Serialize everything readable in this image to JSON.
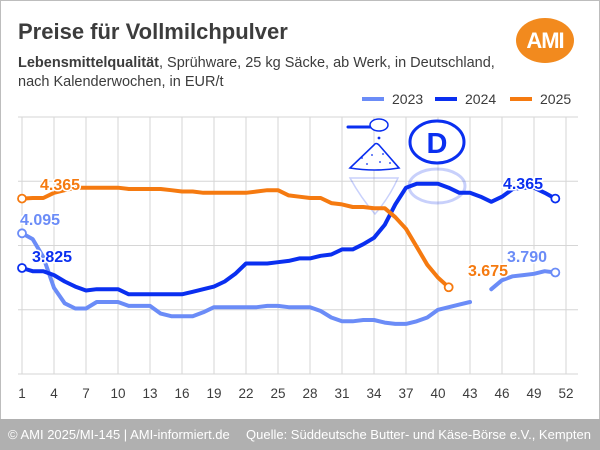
{
  "header": {
    "title": "Preise für Vollmilchpulver",
    "subtitle_bold": "Lebensmittelqualität",
    "subtitle_rest": ", Sprühware, 25 kg Säcke, ab Werk, in Deutschland,",
    "subtitle_line2": "nach Kalenderwochen, in EUR/t",
    "logo_text": "AMI",
    "logo_color": "#f28a1e"
  },
  "icon": {
    "name": "milk-powder-scoop-germany-icon",
    "badge_text": "D"
  },
  "footer": {
    "left": "© AMI 2025/MI-145 | AMI-informiert.de",
    "right": "Quelle: Süddeutsche Butter- und Käse-Börse e.V., Kempten"
  },
  "chart_data": {
    "type": "line",
    "title": "Preise für Vollmilchpulver",
    "xlabel": "Kalenderwoche",
    "ylabel": "EUR/t",
    "x_ticks": [
      1,
      4,
      7,
      10,
      13,
      16,
      19,
      22,
      25,
      28,
      31,
      34,
      37,
      40,
      43,
      46,
      49,
      52
    ],
    "x_range": [
      1,
      52
    ],
    "y_range": [
      3.0,
      5.0
    ],
    "y_gridlines": [
      3.0,
      3.5,
      4.0,
      4.5,
      5.0
    ],
    "y_tick_labels_shown": false,
    "grid": true,
    "legend_position": "top-right",
    "series": [
      {
        "name": "2023",
        "color": "#6b8cf7",
        "start_label": "4.095",
        "end_label": "3.790",
        "values": [
          4.095,
          4.05,
          3.91,
          3.67,
          3.55,
          3.51,
          3.51,
          3.56,
          3.56,
          3.56,
          3.53,
          3.53,
          3.53,
          3.47,
          3.45,
          3.45,
          3.45,
          3.48,
          3.52,
          3.52,
          3.52,
          3.52,
          3.52,
          3.53,
          3.53,
          3.52,
          3.52,
          3.52,
          3.49,
          3.44,
          3.41,
          3.41,
          3.42,
          3.42,
          3.4,
          3.39,
          3.39,
          3.41,
          3.44,
          3.5,
          3.52,
          3.54,
          3.56,
          null,
          3.66,
          3.73,
          3.76,
          3.77,
          3.78,
          3.8,
          3.79
        ]
      },
      {
        "name": "2024",
        "color": "#0a2ff0",
        "start_label": "3.825",
        "end_label": "4.365",
        "values": [
          3.825,
          3.8,
          3.8,
          3.77,
          3.72,
          3.68,
          3.65,
          3.66,
          3.66,
          3.66,
          3.62,
          3.62,
          3.62,
          3.62,
          3.62,
          3.62,
          3.64,
          3.66,
          3.68,
          3.72,
          3.78,
          3.86,
          3.86,
          3.86,
          3.87,
          3.88,
          3.9,
          3.9,
          3.92,
          3.93,
          3.97,
          3.97,
          4.01,
          4.06,
          4.16,
          4.32,
          4.45,
          4.48,
          4.48,
          4.48,
          4.45,
          4.41,
          4.41,
          4.38,
          4.34,
          4.38,
          4.44,
          4.45,
          4.45,
          4.41,
          4.365
        ]
      },
      {
        "name": "2025",
        "color": "#f57a10",
        "start_label": "4.365",
        "end_label": "3.675",
        "values": [
          4.365,
          4.37,
          4.37,
          4.41,
          4.43,
          4.45,
          4.45,
          4.45,
          4.45,
          4.45,
          4.44,
          4.44,
          4.44,
          4.44,
          4.43,
          4.42,
          4.42,
          4.41,
          4.41,
          4.41,
          4.41,
          4.41,
          4.42,
          4.43,
          4.43,
          4.39,
          4.38,
          4.37,
          4.37,
          4.33,
          4.32,
          4.3,
          4.3,
          4.29,
          4.29,
          4.22,
          4.13,
          3.99,
          3.85,
          3.75,
          3.675
        ]
      }
    ]
  }
}
